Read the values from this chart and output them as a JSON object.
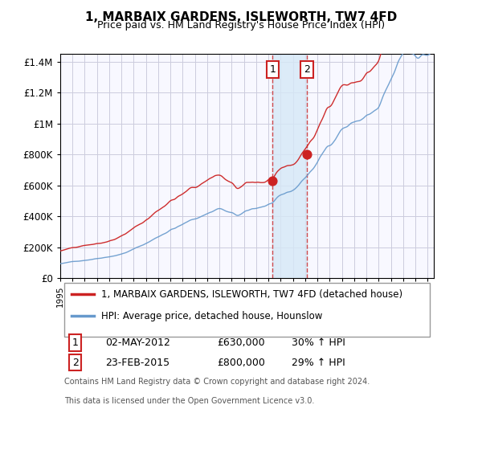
{
  "title": "1, MARBAIX GARDENS, ISLEWORTH, TW7 4FD",
  "subtitle": "Price paid vs. HM Land Registry's House Price Index (HPI)",
  "sale1_date": "02-MAY-2012",
  "sale1_price": 630000,
  "sale1_hpi_pct": "30% ↑ HPI",
  "sale2_date": "23-FEB-2015",
  "sale2_price": 800000,
  "sale2_hpi_pct": "29% ↑ HPI",
  "sale1_year": 2012.33,
  "sale2_year": 2015.14,
  "legend1": "1, MARBAIX GARDENS, ISLEWORTH, TW7 4FD (detached house)",
  "legend2": "HPI: Average price, detached house, Hounslow",
  "footnote1": "Contains HM Land Registry data © Crown copyright and database right 2024.",
  "footnote2": "This data is licensed under the Open Government Licence v3.0.",
  "hpi_color": "#6699cc",
  "price_color": "#cc2222",
  "bg_color": "#f8f8ff",
  "grid_color": "#ccccdd",
  "shade_color": "#d6e8f7",
  "ylim": [
    0,
    1450000
  ],
  "xlim_start": 1995,
  "xlim_end": 2025.5
}
